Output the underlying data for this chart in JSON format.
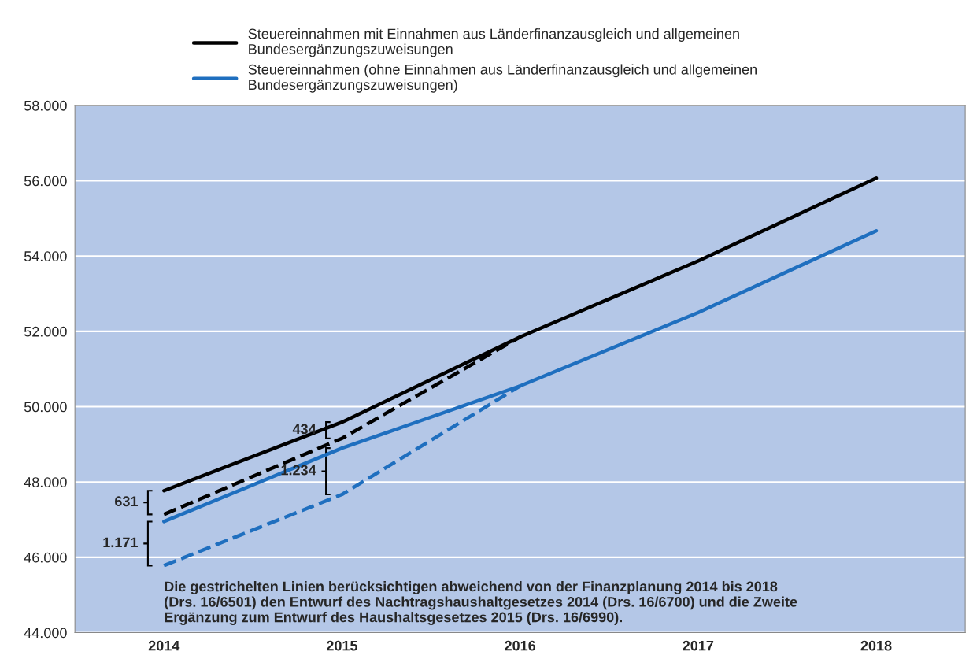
{
  "chart_data": {
    "type": "line",
    "categories": [
      "2014",
      "2015",
      "2016",
      "2017",
      "2018"
    ],
    "series": [
      {
        "name": "Steuereinnahmen mit Einnahmen aus Länderfinanzausgleich und allgemeinen\nBundesergänzungszuweisungen",
        "color": "#000000",
        "values": [
          47770,
          49590,
          51850,
          53870,
          56070
        ]
      },
      {
        "color": "#000000",
        "values": [
          47140,
          49160,
          51850,
          null,
          null
        ],
        "line_style": "dashed"
      },
      {
        "name": "Steuereinnahmen (ohne Einnahmen aus Länderfinanzausgleich und allgemeinen\nBundesergänzungszuweisungen)",
        "color": "#1f6fbf",
        "values": [
          46950,
          48900,
          50550,
          52500,
          54670
        ]
      },
      {
        "color": "#1f6fbf",
        "values": [
          45780,
          47670,
          50550,
          null,
          null
        ],
        "line_style": "dashed"
      }
    ],
    "ylim": [
      44000,
      58000
    ],
    "yticks": [
      {
        "value": 44000,
        "label": "44.000"
      },
      {
        "value": 46000,
        "label": "46.000"
      },
      {
        "value": 48000,
        "label": "48.000"
      },
      {
        "value": 50000,
        "label": "50.000"
      },
      {
        "value": 52000,
        "label": "52.000"
      },
      {
        "value": 54000,
        "label": "54.000"
      },
      {
        "value": 56000,
        "label": "56.000"
      },
      {
        "value": 58000,
        "label": "58.000"
      }
    ],
    "grid": "y",
    "legend": "top",
    "marker": "none",
    "line_style": "solid",
    "annotations": [
      {
        "text": "631",
        "x": "2014",
        "y": 47140
      },
      {
        "text": "1.171",
        "x": "2014",
        "y": 45780
      },
      {
        "text": "434",
        "x": "2015",
        "y": 49160
      },
      {
        "text": "1.234",
        "x": "2015",
        "y": 47670
      },
      "Die gestrichelten Linien berücksichtigen abweichend von der Finanzplanung 2014 bis 2018\n(Drs. 16/6501) den Entwurf des Nachtragshaushaltgesetzes 2014 (Drs. 16/6700) und die Zweite\nErgänzung zum Entwurf des Haushaltsgesetzes 2015 (Drs. 16/6990)."
    ]
  }
}
